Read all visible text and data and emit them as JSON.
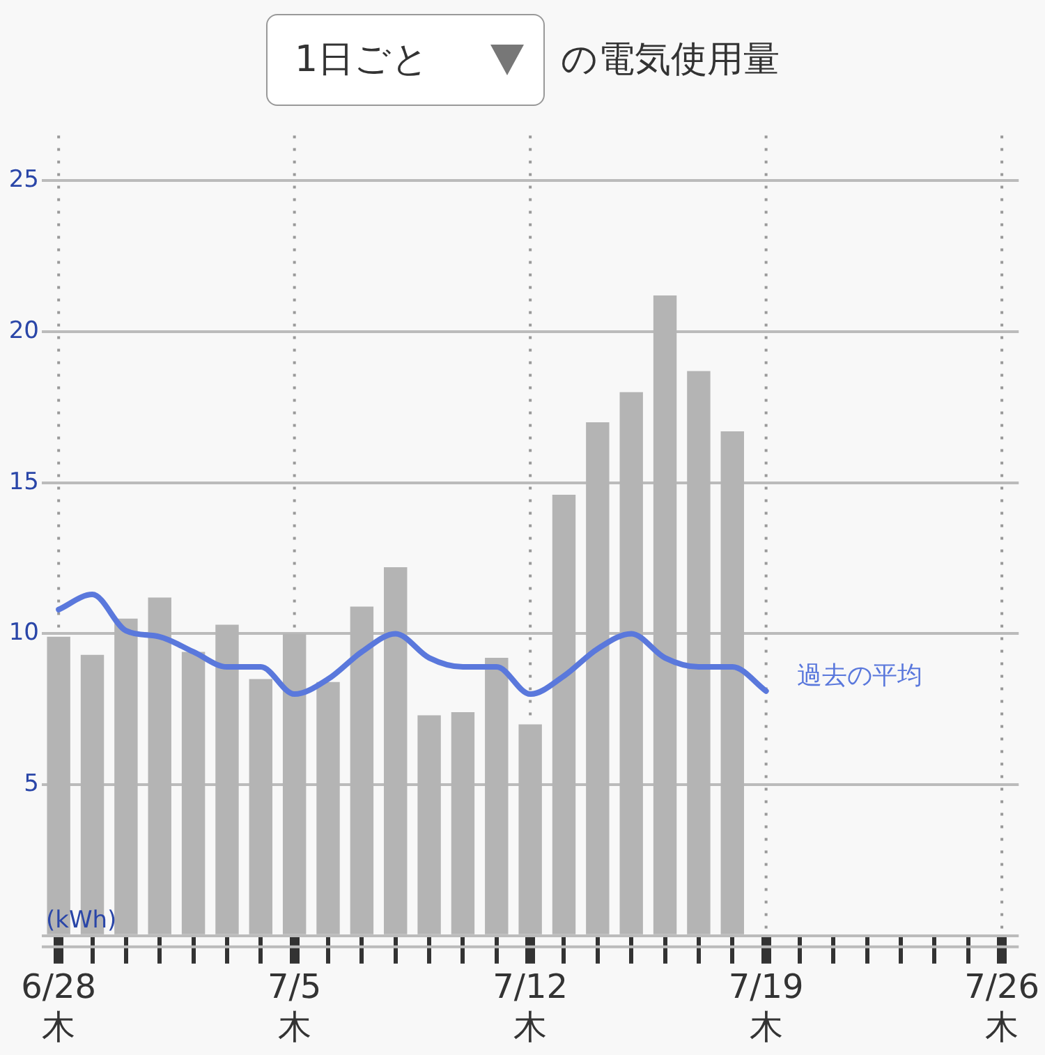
{
  "chart_data": {
    "type": "bar",
    "title": "の電気使用量",
    "annotations": [
      "1日ごと"
    ],
    "ylabel": "(kWh)",
    "categories": [
      "6/28\n木",
      null,
      null,
      null,
      null,
      null,
      null,
      "7/5\n木",
      null,
      null,
      null,
      null,
      null,
      null,
      "7/12\n木",
      null,
      null,
      null,
      null,
      null,
      null,
      "7/19\n木",
      null,
      null,
      null,
      null,
      null,
      null,
      "7/26\n木"
    ],
    "series": [
      {
        "color": "#b4b4b4",
        "values": [
          9.9,
          9.3,
          10.5,
          11.2,
          9.4,
          10.3,
          8.5,
          10.0,
          8.4,
          10.9,
          12.2,
          7.3,
          7.4,
          9.2,
          7.0,
          14.6,
          17.0,
          18.0,
          21.2,
          18.7,
          16.7,
          null,
          null,
          null,
          null,
          null,
          null,
          null,
          null
        ]
      },
      {
        "type": "line",
        "name": "過去の平均",
        "color": "#5a78dc",
        "values": [
          10.8,
          11.3,
          10.1,
          9.9,
          9.4,
          8.9,
          8.9,
          8.0,
          8.5,
          9.4,
          10.0,
          9.2,
          8.9,
          8.9,
          8.0,
          8.6,
          9.5,
          10.0,
          9.2,
          8.9,
          8.9,
          8.1,
          null,
          null,
          null,
          null,
          null,
          null,
          null
        ]
      }
    ],
    "ylim": [
      0,
      26.5
    ],
    "yticks": [
      {
        "value": 0,
        "label": null
      },
      5,
      10,
      15,
      20,
      25
    ],
    "grid": true,
    "marker": "none",
    "line_style": "solid",
    "legend": false
  }
}
